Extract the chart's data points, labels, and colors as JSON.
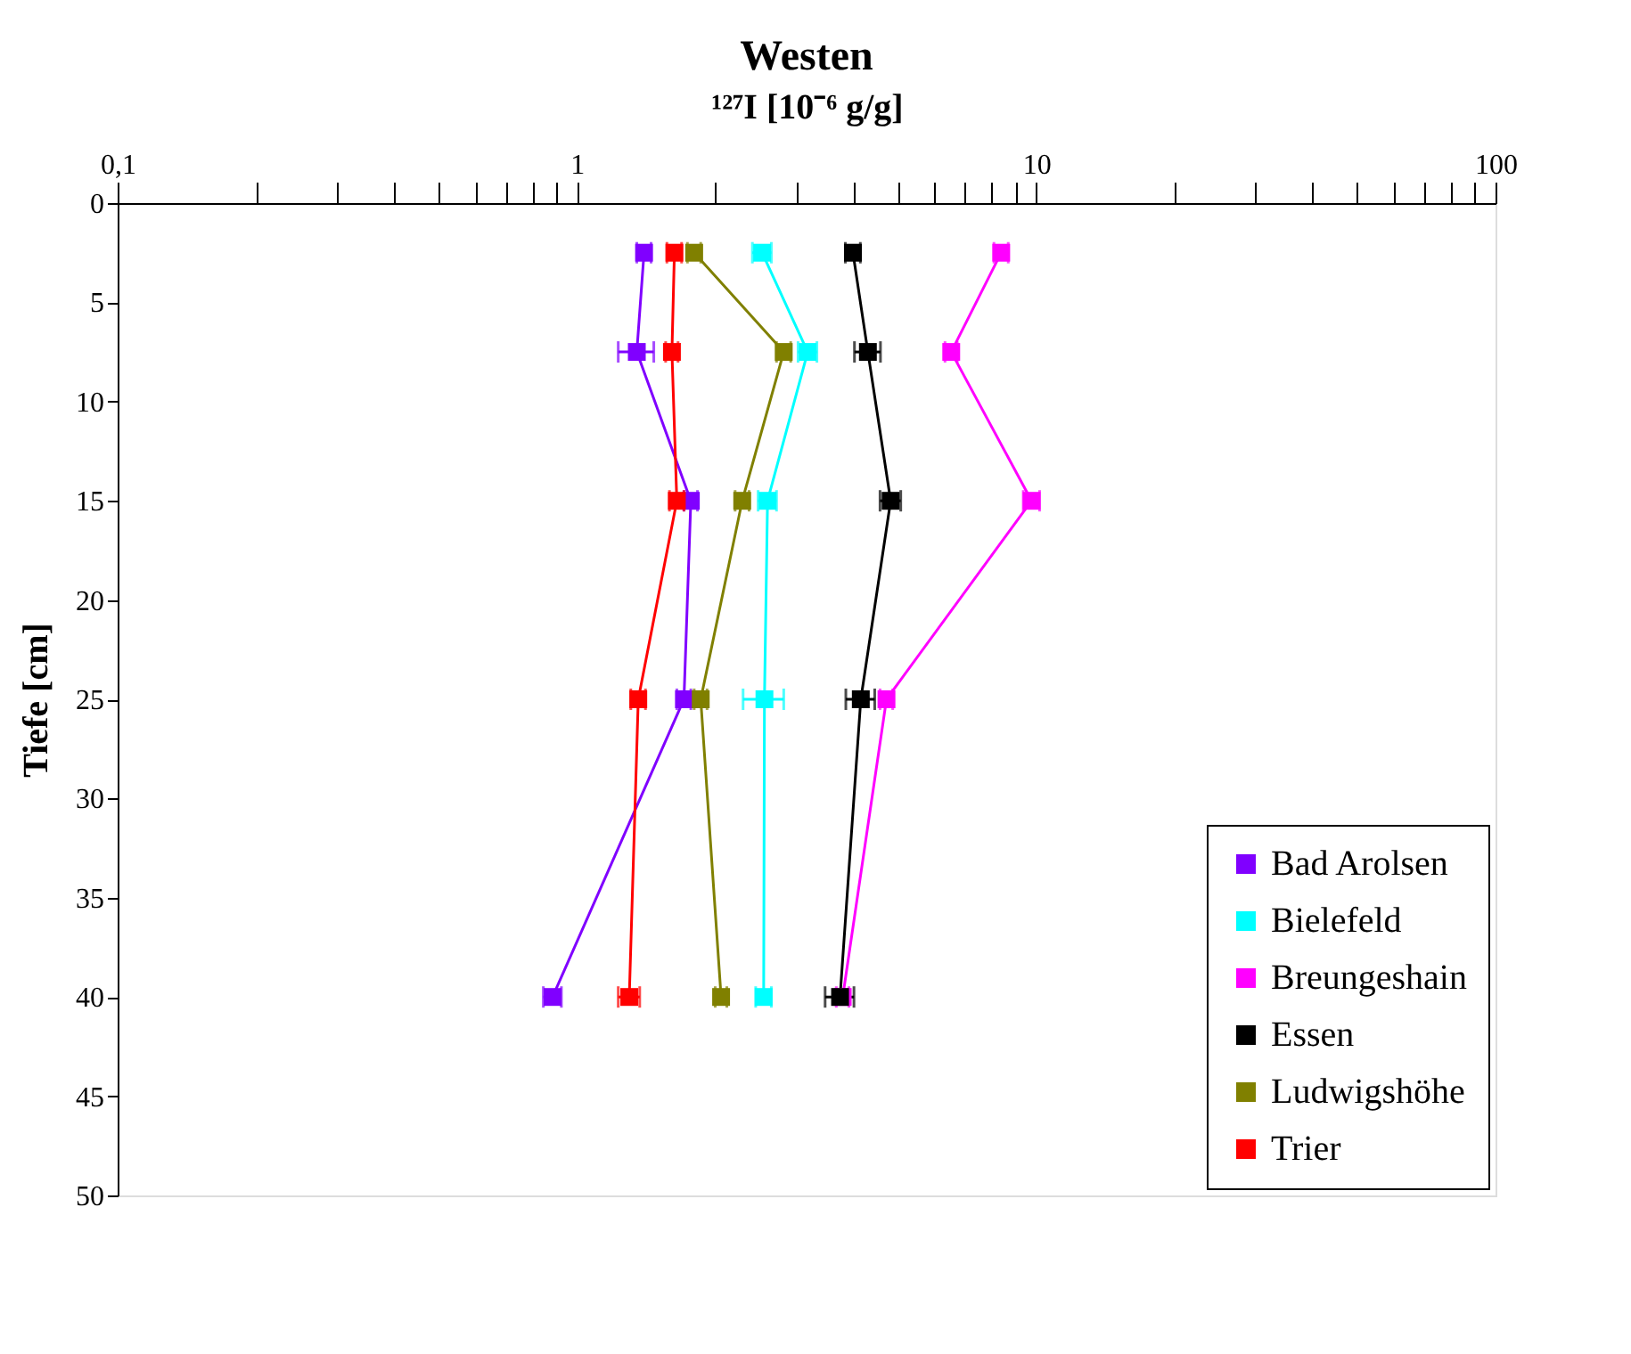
{
  "chart_data": {
    "type": "line",
    "title": "Westen",
    "xlabel": "¹²⁷I [10⁻⁶ g/g]",
    "ylabel": "Tiefe [cm]",
    "log": "x",
    "xlim": [
      0.1,
      100
    ],
    "ylim": [
      50,
      0
    ],
    "xticks": [
      {
        "value": 0.1,
        "label": "0,1"
      },
      {
        "value": 0.2,
        "label": null
      },
      {
        "value": 0.3,
        "label": null
      },
      {
        "value": 0.4,
        "label": null
      },
      {
        "value": 0.5,
        "label": null
      },
      {
        "value": 0.6,
        "label": null
      },
      {
        "value": 0.7,
        "label": null
      },
      {
        "value": 0.8,
        "label": null
      },
      {
        "value": 0.9,
        "label": null
      },
      1,
      {
        "value": 2,
        "label": null
      },
      {
        "value": 3,
        "label": null
      },
      {
        "value": 4,
        "label": null
      },
      {
        "value": 5,
        "label": null
      },
      {
        "value": 6,
        "label": null
      },
      {
        "value": 7,
        "label": null
      },
      {
        "value": 8,
        "label": null
      },
      {
        "value": 9,
        "label": null
      },
      10,
      {
        "value": 20,
        "label": null
      },
      {
        "value": 30,
        "label": null
      },
      {
        "value": 40,
        "label": null
      },
      {
        "value": 50,
        "label": null
      },
      {
        "value": 60,
        "label": null
      },
      {
        "value": 70,
        "label": null
      },
      {
        "value": 80,
        "label": null
      },
      {
        "value": 90,
        "label": null
      },
      100
    ],
    "yticks": [
      0,
      5,
      10,
      15,
      20,
      25,
      30,
      35,
      40,
      45,
      50
    ],
    "grid": false,
    "legend": "bottom right",
    "marker": "square",
    "line_style": "solid",
    "series": [
      {
        "name": "Bad Arolsen",
        "color": "#8000ff",
        "x": [
          1.4,
          1.35,
          1.77,
          1.71,
          0.885
        ],
        "values": [
          2.5,
          7.5,
          15,
          25,
          40
        ],
        "xerrors": [
          0.05,
          0.12,
          0.06,
          0.06,
          0.04
        ]
      },
      {
        "name": "Bielefeld",
        "color": "#00ffff",
        "x": [
          2.53,
          3.18,
          2.6,
          2.56,
          2.55
        ],
        "values": [
          2.5,
          7.5,
          15,
          25,
          40
        ],
        "xerrors": [
          0.12,
          0.15,
          0.12,
          0.26,
          0.1
        ]
      },
      {
        "name": "Breungeshain",
        "color": "#ff00ff",
        "x": [
          8.39,
          6.53,
          9.77,
          4.72,
          3.79
        ],
        "values": [
          2.5,
          7.5,
          15,
          25,
          40
        ],
        "xerrors": [
          0.3,
          0.2,
          0.4,
          0.15,
          0.12
        ]
      },
      {
        "name": "Essen",
        "color": "#000000",
        "x": [
          3.99,
          4.3,
          4.82,
          4.15,
          3.74
        ],
        "values": [
          2.5,
          7.5,
          15,
          25,
          40
        ],
        "xerrors": [
          0.15,
          0.28,
          0.25,
          0.3,
          0.27
        ]
      },
      {
        "name": "Ludwigshöhe",
        "color": "#808000",
        "x": [
          1.8,
          2.82,
          2.29,
          1.86,
          2.06
        ],
        "values": [
          2.5,
          7.5,
          15,
          25,
          40
        ],
        "xerrors": [
          0.06,
          0.1,
          0.08,
          0.06,
          0.06
        ]
      },
      {
        "name": "Trier",
        "color": "#ff0000",
        "x": [
          1.63,
          1.61,
          1.65,
          1.36,
          1.3
        ],
        "values": [
          2.5,
          7.5,
          15,
          25,
          40
        ],
        "xerrors": [
          0.06,
          0.05,
          0.06,
          0.05,
          0.07
        ]
      }
    ]
  }
}
